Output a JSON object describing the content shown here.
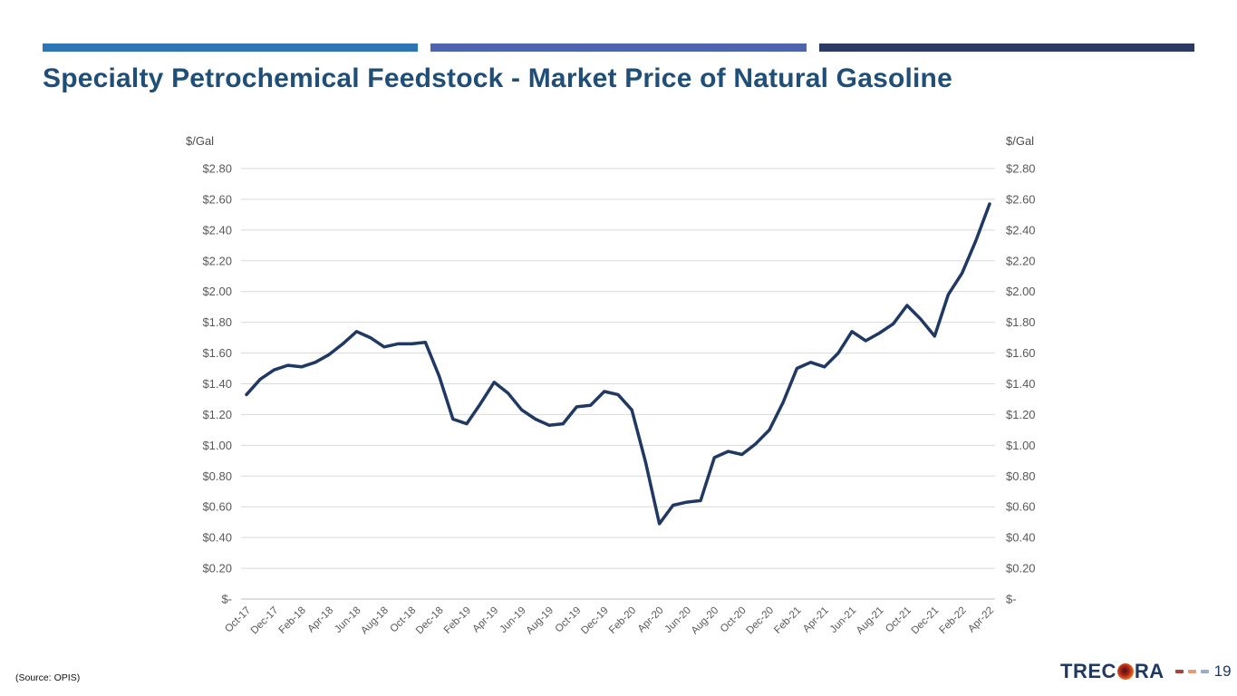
{
  "slide": {
    "title": "Specialty Petrochemical Feedstock - Market Price of Natural Gasoline",
    "title_color": "#1F4E79",
    "accent_bar_colors": [
      "#2E75B6",
      "#4E64AE",
      "#2B3A64"
    ],
    "source_note": "(Source: OPIS)",
    "page_number": "19",
    "logo": {
      "text_left": "TREC",
      "text_right": "RA",
      "text_color": "#1F3864",
      "o_icon": "orange-red-globe-icon"
    },
    "footer_dash_colors": [
      "#A8423A",
      "#E89B72",
      "#97ABD8"
    ]
  },
  "chart_data": {
    "type": "line",
    "title": "Specialty Petrochemical Feedstock - Market Price of Natural Gasoline",
    "unit_label": "$/Gal",
    "xlabel": "",
    "ylabel": "$/Gal",
    "ylim": [
      0,
      2.8
    ],
    "y_tick_step": 0.2,
    "grid": true,
    "gridline_color": "#D9D9D9",
    "baseline_color": "#BFBFBF",
    "axis_label_color": "#595959",
    "legend": "none",
    "y_ticks": [
      "$2.80",
      "$2.60",
      "$2.40",
      "$2.20",
      "$2.00",
      "$1.80",
      "$1.60",
      "$1.40",
      "$1.20",
      "$1.00",
      "$0.80",
      "$0.60",
      "$0.40",
      "$0.20",
      "$-"
    ],
    "x": [
      "Oct-17",
      "Nov-17",
      "Dec-17",
      "Jan-18",
      "Feb-18",
      "Mar-18",
      "Apr-18",
      "May-18",
      "Jun-18",
      "Jul-18",
      "Aug-18",
      "Sep-18",
      "Oct-18",
      "Nov-18",
      "Dec-18",
      "Jan-19",
      "Feb-19",
      "Mar-19",
      "Apr-19",
      "May-19",
      "Jun-19",
      "Jul-19",
      "Aug-19",
      "Sep-19",
      "Oct-19",
      "Nov-19",
      "Dec-19",
      "Jan-20",
      "Feb-20",
      "Mar-20",
      "Apr-20",
      "May-20",
      "Jun-20",
      "Jul-20",
      "Aug-20",
      "Sep-20",
      "Oct-20",
      "Nov-20",
      "Dec-20",
      "Jan-21",
      "Feb-21",
      "Mar-21",
      "Apr-21",
      "May-21",
      "Jun-21",
      "Jul-21",
      "Aug-21",
      "Sep-21",
      "Oct-21",
      "Nov-21",
      "Dec-21",
      "Jan-22",
      "Feb-22",
      "Mar-22",
      "Apr-22"
    ],
    "x_tick_labels": [
      "Oct-17",
      "Dec-17",
      "Feb-18",
      "Apr-18",
      "Jun-18",
      "Aug-18",
      "Oct-18",
      "Dec-18",
      "Feb-19",
      "Apr-19",
      "Jun-19",
      "Aug-19",
      "Oct-19",
      "Dec-19",
      "Feb-20",
      "Apr-20",
      "Jun-20",
      "Aug-20",
      "Oct-20",
      "Dec-20",
      "Feb-21",
      "Apr-21",
      "Jun-21",
      "Aug-21",
      "Oct-21",
      "Dec-21",
      "Feb-22",
      "Apr-22"
    ],
    "series": [
      {
        "name": "Market Price of Natural Gasoline",
        "color": "#1F3864",
        "values": [
          1.33,
          1.43,
          1.49,
          1.52,
          1.51,
          1.54,
          1.59,
          1.66,
          1.74,
          1.7,
          1.64,
          1.66,
          1.66,
          1.67,
          1.45,
          1.17,
          1.14,
          1.27,
          1.41,
          1.34,
          1.23,
          1.17,
          1.13,
          1.14,
          1.25,
          1.26,
          1.35,
          1.33,
          1.23,
          0.89,
          0.49,
          0.61,
          0.63,
          0.64,
          0.92,
          0.96,
          0.94,
          1.01,
          1.1,
          1.28,
          1.5,
          1.54,
          1.51,
          1.6,
          1.74,
          1.68,
          1.73,
          1.79,
          1.91,
          1.82,
          1.71,
          1.98,
          2.12,
          2.33,
          2.57
        ]
      }
    ]
  }
}
